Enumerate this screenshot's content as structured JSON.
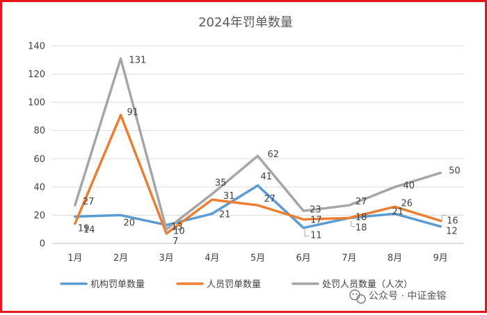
{
  "chart_data": {
    "type": "line",
    "title": "2024年罚单数量",
    "xlabel": "",
    "ylabel": "",
    "categories": [
      "1月",
      "2月",
      "3月",
      "4月",
      "5月",
      "6月",
      "7月",
      "8月",
      "9月"
    ],
    "ylim": [
      0,
      140
    ],
    "yticks": [
      0,
      20,
      40,
      60,
      80,
      100,
      120,
      140
    ],
    "grid": true,
    "legend_position": "bottom",
    "series": [
      {
        "name": "机构罚单数量",
        "color": "#5b9bd5",
        "values": [
          19,
          20,
          13,
          21,
          41,
          11,
          18,
          21,
          12
        ]
      },
      {
        "name": "人员罚单数量",
        "color": "#ed7d31",
        "values": [
          14,
          91,
          7,
          31,
          27,
          17,
          18,
          26,
          16
        ]
      },
      {
        "name": "处罚人员数量（人次）",
        "color": "#a5a5a5",
        "values": [
          27,
          131,
          10,
          35,
          62,
          23,
          27,
          40,
          50
        ]
      }
    ],
    "data_labels": [
      [
        "19",
        "20",
        "13",
        "21",
        "41",
        "11",
        "18",
        "21",
        "12"
      ],
      [
        "14",
        "91",
        "7",
        "31",
        "27",
        "17",
        "18",
        "26",
        "16"
      ],
      [
        "27",
        "131",
        "10",
        "35",
        "62",
        "23",
        "27",
        "40",
        "50"
      ]
    ]
  },
  "watermark": {
    "icon": "wechat-icon",
    "text": "公众号 · 中证金镕"
  }
}
